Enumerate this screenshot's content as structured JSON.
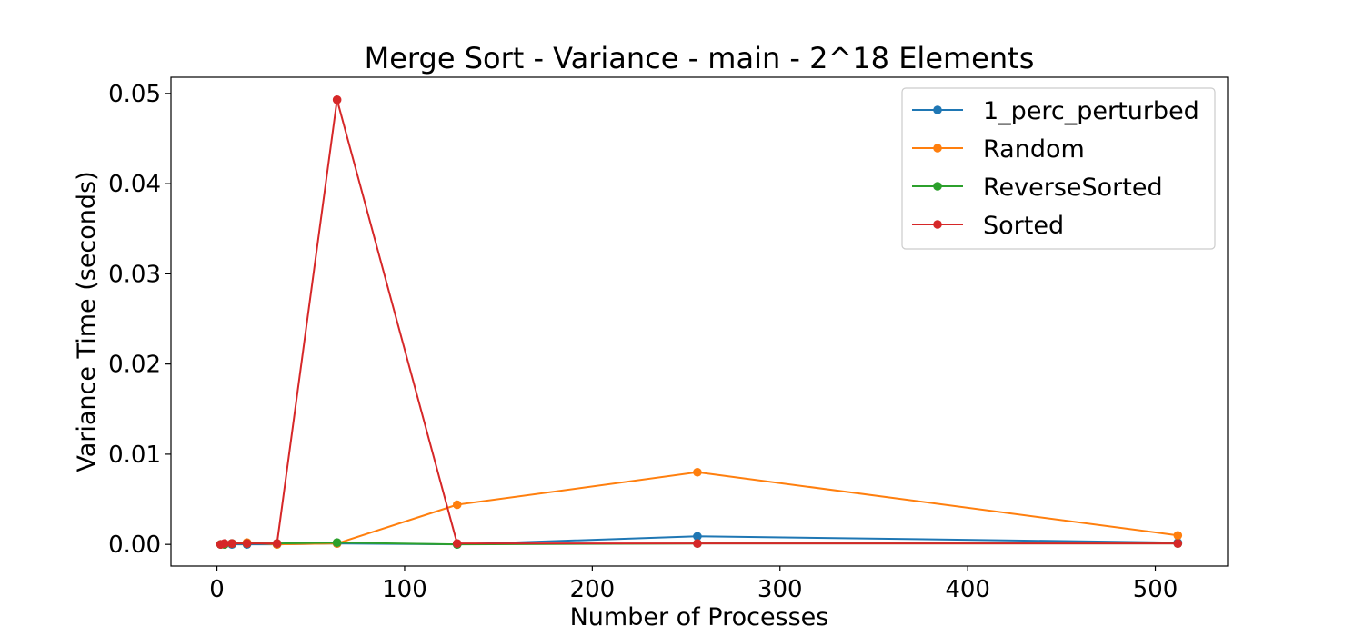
{
  "chart_data": {
    "type": "line",
    "title": "Merge Sort - Variance - main - 2^18 Elements",
    "xlabel": "Number of Processes",
    "ylabel": "Variance Time (seconds)",
    "xlim": [
      -24.5,
      538.5
    ],
    "ylim": [
      -0.0024,
      0.0518
    ],
    "xticks": [
      0,
      100,
      200,
      300,
      400,
      500
    ],
    "xtick_labels": [
      "0",
      "100",
      "200",
      "300",
      "400",
      "500"
    ],
    "yticks": [
      0.0,
      0.01,
      0.02,
      0.03,
      0.04,
      0.05
    ],
    "ytick_labels": [
      "0.00",
      "0.01",
      "0.02",
      "0.03",
      "0.04",
      "0.05"
    ],
    "grid": false,
    "legend_position": "top-right",
    "x": [
      2,
      4,
      8,
      16,
      32,
      64,
      128,
      256,
      512
    ],
    "series": [
      {
        "name": "1_perc_perturbed",
        "color": "#1f77b4",
        "values": [
          0.0,
          0.0,
          0.0,
          0.0,
          0.0,
          0.0001,
          0.0,
          0.0009,
          0.0002
        ]
      },
      {
        "name": "Random",
        "color": "#ff7f0e",
        "values": [
          0.0,
          0.0,
          0.0001,
          0.0002,
          0.0,
          0.0001,
          0.0044,
          0.008,
          0.001
        ]
      },
      {
        "name": "ReverseSorted",
        "color": "#2ca02c",
        "values": [
          0.0,
          0.0,
          0.0001,
          0.0001,
          0.0001,
          0.0002,
          0.0,
          0.0001,
          0.0001
        ]
      },
      {
        "name": "Sorted",
        "color": "#d62728",
        "values": [
          0.0,
          0.0001,
          0.0001,
          0.0001,
          0.0001,
          0.0493,
          0.0001,
          0.0001,
          0.0001
        ]
      }
    ]
  }
}
